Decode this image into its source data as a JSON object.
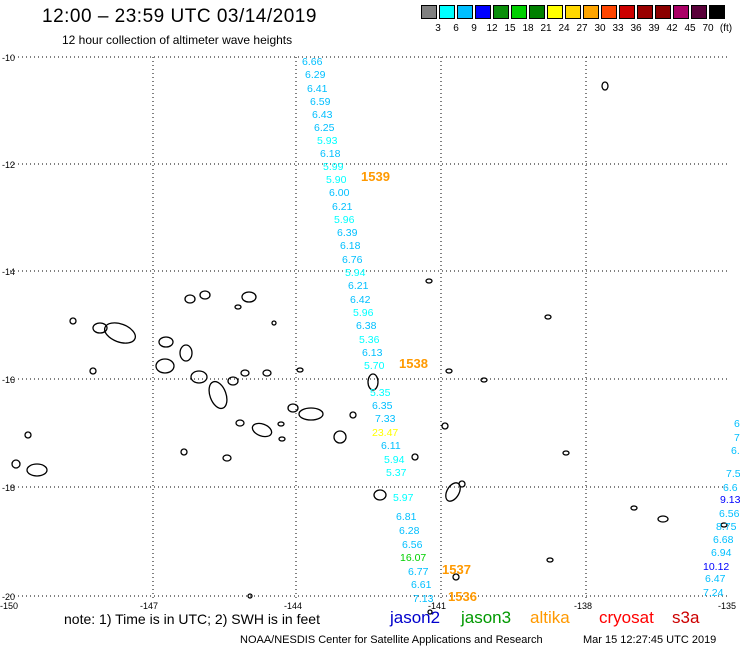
{
  "header": {
    "title": "12:00 – 23:59 UTC 03/14/2019",
    "subtitle": "12 hour collection of altimeter wave heights"
  },
  "colorbar": {
    "colors": [
      "#808080",
      "#00ffff",
      "#00bfff",
      "#0000ff",
      "#0a8f0a",
      "#00d000",
      "#008000",
      "#ffff00",
      "#ffd700",
      "#ffa500",
      "#ff4500",
      "#cc0000",
      "#990000",
      "#8b0000",
      "#aa0066",
      "#5a003a",
      "#000000"
    ],
    "labels": [
      "3",
      "6",
      "9",
      "12",
      "15",
      "18",
      "21",
      "24",
      "27",
      "30",
      "33",
      "36",
      "39",
      "42",
      "45",
      "70",
      "(ft)"
    ]
  },
  "axes": {
    "lat_labels": [
      "-10",
      "-12",
      "-14",
      "-16",
      "-18",
      "-20"
    ],
    "lon_labels": [
      "-150",
      "-147",
      "-144",
      "-141",
      "-138",
      "-135"
    ]
  },
  "wave_heights": [
    {
      "v": "6.66",
      "c": "#00bfff"
    },
    {
      "v": "6.29",
      "c": "#00bfff"
    },
    {
      "v": "6.41",
      "c": "#00bfff"
    },
    {
      "v": "6.59",
      "c": "#00bfff"
    },
    {
      "v": "6.43",
      "c": "#00bfff"
    },
    {
      "v": "6.25",
      "c": "#00bfff"
    },
    {
      "v": "5.93",
      "c": "#00ffff"
    },
    {
      "v": "6.18",
      "c": "#00bfff"
    },
    {
      "v": "5.99",
      "c": "#00ffff"
    },
    {
      "v": "5.90",
      "c": "#00ffff"
    },
    {
      "v": "6.00",
      "c": "#00bfff"
    },
    {
      "v": "6.21",
      "c": "#00bfff"
    },
    {
      "v": "5.96",
      "c": "#00ffff"
    },
    {
      "v": "6.39",
      "c": "#00bfff"
    },
    {
      "v": "6.18",
      "c": "#00bfff"
    },
    {
      "v": "6.76",
      "c": "#00bfff"
    },
    {
      "v": "5.94",
      "c": "#00ffff"
    },
    {
      "v": "6.21",
      "c": "#00bfff"
    },
    {
      "v": "6.42",
      "c": "#00bfff"
    },
    {
      "v": "5.96",
      "c": "#00ffff"
    },
    {
      "v": "6.38",
      "c": "#00bfff"
    },
    {
      "v": "5.36",
      "c": "#00ffff"
    },
    {
      "v": "6.13",
      "c": "#00bfff"
    },
    {
      "v": "5.70",
      "c": "#00ffff"
    },
    {
      "v": "5.35",
      "c": "#00ffff"
    },
    {
      "v": "6.35",
      "c": "#00bfff"
    },
    {
      "v": "7.33",
      "c": "#00bfff"
    },
    {
      "v": "23.47",
      "c": "#ffff00"
    },
    {
      "v": "6.11",
      "c": "#00bfff"
    },
    {
      "v": "5.94",
      "c": "#00ffff"
    },
    {
      "v": "5.37",
      "c": "#00ffff"
    },
    {
      "v": "5.97",
      "c": "#00ffff"
    },
    {
      "v": "6.81",
      "c": "#00bfff"
    },
    {
      "v": "6.28",
      "c": "#00bfff"
    },
    {
      "v": "6.56",
      "c": "#00bfff"
    },
    {
      "v": "16.07",
      "c": "#00d000"
    },
    {
      "v": "6.77",
      "c": "#00bfff"
    },
    {
      "v": "6.61",
      "c": "#00bfff"
    },
    {
      "v": "7.13",
      "c": "#00bfff"
    }
  ],
  "right_track": [
    {
      "v": "6",
      "c": "#00bfff"
    },
    {
      "v": "7",
      "c": "#00bfff"
    },
    {
      "v": "6.",
      "c": "#00bfff"
    },
    {
      "v": "7.5",
      "c": "#00bfff"
    },
    {
      "v": "6.6",
      "c": "#00bfff"
    },
    {
      "v": "9.13",
      "c": "#0000ff"
    },
    {
      "v": "6.56",
      "c": "#00bfff"
    },
    {
      "v": "8.75",
      "c": "#00bfff"
    },
    {
      "v": "6.68",
      "c": "#00bfff"
    },
    {
      "v": "6.94",
      "c": "#00bfff"
    },
    {
      "v": "10.12",
      "c": "#0000ff"
    },
    {
      "v": "6.47",
      "c": "#00bfff"
    },
    {
      "v": "7.24",
      "c": "#00bfff"
    }
  ],
  "time_labels": [
    "1539",
    "1538",
    "1537",
    "1536"
  ],
  "footer": {
    "note": "note:  1) Time is in UTC;  2) SWH is in feet",
    "satellites": [
      {
        "name": "jason2",
        "color": "#0000cc"
      },
      {
        "name": "jason3",
        "color": "#009900"
      },
      {
        "name": "altika",
        "color": "#ff9900"
      },
      {
        "name": "cryosat",
        "color": "#ff0000"
      },
      {
        "name": "s3a",
        "color": "#cc0000"
      }
    ],
    "credit": "NOAA/NESDIS Center for Satellite Applications and Research",
    "timestamp": "Mar 15 12:27:45 UTC 2019"
  }
}
